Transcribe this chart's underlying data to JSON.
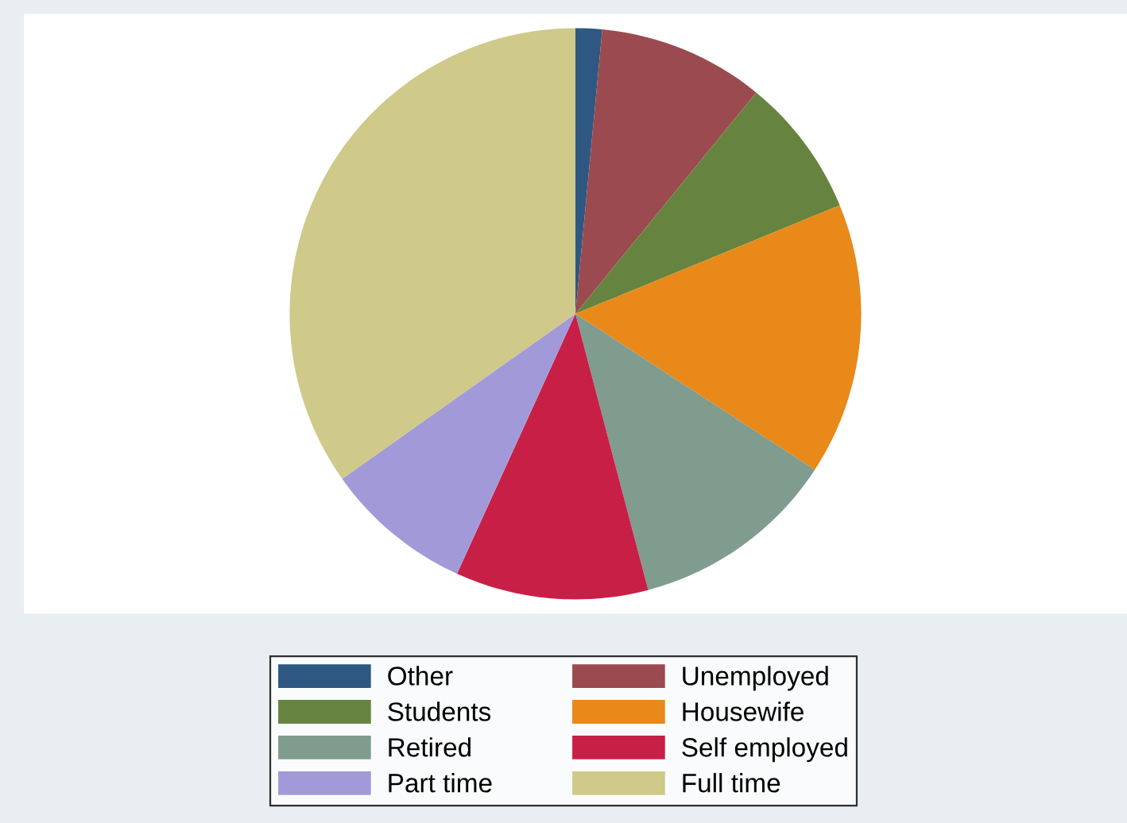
{
  "chart_data": {
    "type": "pie",
    "categories": [
      "Other",
      "Unemployed",
      "Students",
      "Housewife",
      "Retired",
      "Self employed",
      "Part time",
      "Full time"
    ],
    "values": [
      1.5,
      9.4,
      7.9,
      15.4,
      11.7,
      10.9,
      8.4,
      34.8
    ],
    "colors": [
      "#2e5882",
      "#9b4a4f",
      "#66843f",
      "#e8891a",
      "#7f9c8f",
      "#c81f47",
      "#a29ad8",
      "#cfc98a"
    ],
    "legend": "bottom"
  }
}
